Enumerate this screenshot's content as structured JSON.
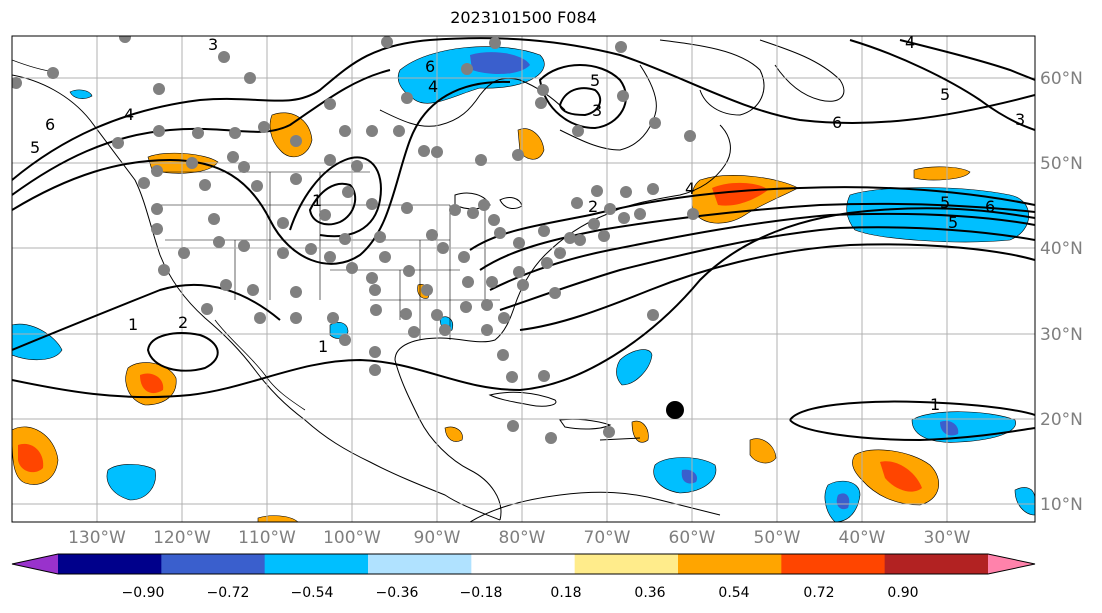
{
  "title": "2023101500 F084",
  "longitude_labels": [
    "130°W",
    "120°W",
    "110°W",
    "100°W",
    "90°W",
    "80°W",
    "70°W",
    "60°W",
    "50°W",
    "40°W",
    "30°W"
  ],
  "latitude_labels": [
    "60°N",
    "50°N",
    "40°N",
    "30°N",
    "20°N",
    "10°N"
  ],
  "colorbar": {
    "ticks": [
      "−0.90",
      "−0.72",
      "−0.54",
      "−0.36",
      "−0.18",
      "0.18",
      "0.36",
      "0.54",
      "0.72",
      "0.90"
    ],
    "colors": [
      "#9932CC",
      "#00008B",
      "#3A5FCD",
      "#00BFFF",
      "#B0E2FF",
      "#FFFFFF",
      "#FFEC8B",
      "#FFA500",
      "#FF4500",
      "#B22222",
      "#FF82AB"
    ]
  },
  "contour_labels": [
    "6",
    "4",
    "5",
    "2",
    "1",
    "4",
    "6",
    "5",
    "3",
    "4",
    "5",
    "6",
    "5",
    "6",
    "1",
    "2",
    "1",
    "1",
    "3",
    "5",
    "4",
    "3"
  ],
  "colors": {
    "land_outline": "#000000",
    "grid": "#b0b0b0",
    "station": "#808080",
    "contour": "#000000"
  }
}
